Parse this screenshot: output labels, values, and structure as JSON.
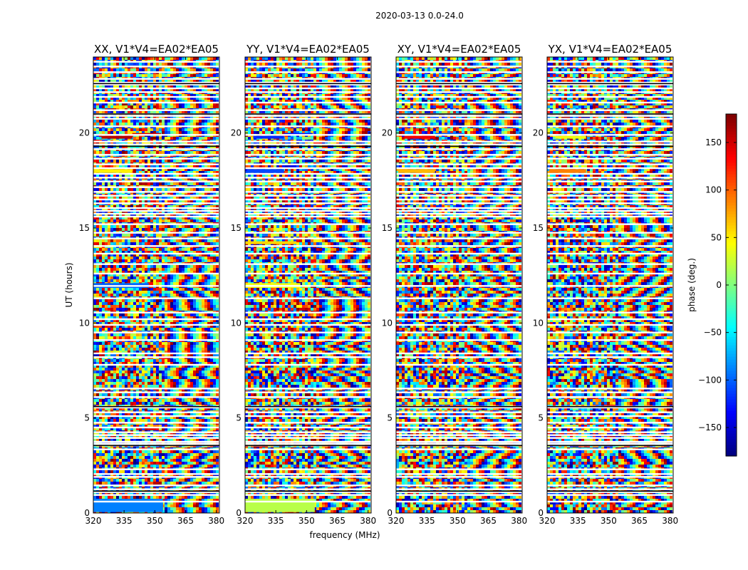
{
  "figure": {
    "suptitle": "2020-03-13 0.0-24.0"
  },
  "chart_data": {
    "type": "heatmap",
    "title": "2020-03-13 0.0-24.0",
    "xlabel": "frequency (MHz)",
    "ylabel": "UT (hours)",
    "xlim": [
      320,
      381.5
    ],
    "ylim": [
      0,
      24
    ],
    "xticks": [
      320,
      335,
      350,
      365,
      380
    ],
    "yticks": [
      0,
      5,
      10,
      15,
      20
    ],
    "panels": [
      {
        "title": "XX, V1*V4=EA02*EA05",
        "pol": "XX"
      },
      {
        "title": "YY, V1*V4=EA02*EA05",
        "pol": "YY"
      },
      {
        "title": "XY, V1*V4=EA02*EA05",
        "pol": "XY"
      },
      {
        "title": "YX, V1*V4=EA02*EA05",
        "pol": "YX"
      }
    ],
    "colorbar": {
      "label": "phase (deg.)",
      "range": [
        -180,
        180
      ],
      "ticks": [
        -150,
        -100,
        -50,
        0,
        50,
        100,
        150
      ],
      "colormap": "jet"
    },
    "flagged_hours": [
      0.6,
      0.95,
      1.1,
      1.25,
      1.45,
      1.9,
      2.05,
      2.3,
      3.35,
      3.55,
      3.65,
      3.75,
      3.95,
      4.1,
      4.25,
      4.5,
      4.75,
      5.1,
      5.3,
      5.55,
      5.6,
      6.1,
      6.35,
      6.55,
      7.8,
      8.2,
      8.4,
      9.1,
      9.5,
      9.9,
      10.2,
      10.55,
      11.3,
      11.95,
      12.6,
      13.1,
      13.65,
      14.05,
      14.45,
      14.75,
      15.2,
      15.6,
      15.75,
      15.9,
      16.05,
      16.3,
      16.5,
      16.7,
      16.9,
      17.15,
      17.45,
      17.65,
      17.85,
      18.15,
      18.35,
      18.65,
      18.85,
      19.15,
      19.4,
      19.55,
      19.9,
      20.35,
      20.75,
      20.9,
      21.0,
      21.2,
      21.6,
      21.9,
      22.15,
      22.35,
      22.55,
      22.65,
      22.85,
      23.2,
      23.5,
      23.75
    ],
    "coherent_bands": [
      {
        "hours": [
          0.05,
          0.75
        ],
        "freq": [
          320,
          354
        ],
        "phase": {
          "XX": -90,
          "YY": 20,
          "XY": null,
          "YX": null
        }
      },
      {
        "hours": [
          11.85,
          12.1
        ],
        "freq": [
          320,
          347
        ],
        "phase": {
          "XX": -100,
          "YY": 40,
          "XY": null,
          "YX": null
        }
      },
      {
        "hours": [
          14.15,
          14.3
        ],
        "freq": [
          320,
          345
        ],
        "phase": {
          "XX": null,
          "YY": 60,
          "XY": null,
          "YX": null
        }
      },
      {
        "hours": [
          17.9,
          18.1
        ],
        "freq": [
          321,
          339
        ],
        "phase": {
          "XX": 50,
          "YY": -110,
          "XY": 70,
          "YX": 90
        }
      },
      {
        "hours": [
          19.7,
          19.85
        ],
        "freq": [
          324,
          339
        ],
        "phase": {
          "XX": 160,
          "YY": -120,
          "XY": 140,
          "YX": 40
        }
      },
      {
        "hours": [
          19.9,
          20.0
        ],
        "freq": [
          339,
          353
        ],
        "phase": {
          "XX": 150,
          "YY": -130,
          "XY": -100,
          "YX": -120
        }
      }
    ]
  }
}
